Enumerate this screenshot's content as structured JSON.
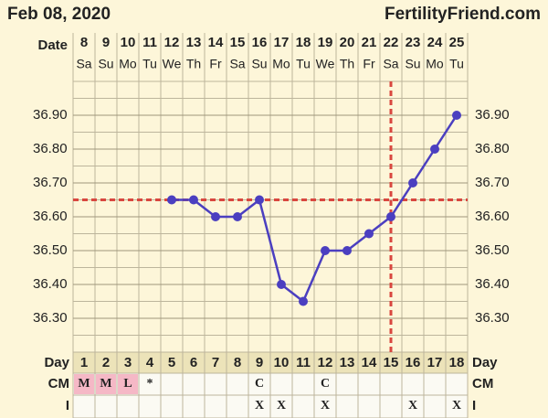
{
  "header": {
    "date": "Feb 08, 2020",
    "site": "FertilityFriend.com"
  },
  "chart_data": {
    "type": "line",
    "date_label": "Date",
    "dates": [
      8,
      9,
      10,
      11,
      12,
      13,
      14,
      15,
      16,
      17,
      18,
      19,
      20,
      21,
      22,
      23,
      24,
      25
    ],
    "weekdays": [
      "Sa",
      "Su",
      "Mo",
      "Tu",
      "We",
      "Th",
      "Fr",
      "Sa",
      "Su",
      "Mo",
      "Tu",
      "We",
      "Th",
      "Fr",
      "Sa",
      "Su",
      "Mo",
      "Tu"
    ],
    "day_label": "Day",
    "categories": [
      1,
      2,
      3,
      4,
      5,
      6,
      7,
      8,
      9,
      10,
      11,
      12,
      13,
      14,
      15,
      16,
      17,
      18
    ],
    "values": [
      null,
      null,
      null,
      null,
      36.65,
      36.65,
      36.6,
      36.6,
      36.65,
      36.4,
      36.35,
      36.5,
      36.5,
      36.55,
      36.6,
      36.7,
      36.8,
      36.9
    ],
    "color": "#4b3fc0",
    "ylim": [
      36.2,
      37.0
    ],
    "yticks": [
      {
        "value": 36.3,
        "label": "36.30"
      },
      {
        "value": 36.4,
        "label": "36.40"
      },
      {
        "value": 36.5,
        "label": "36.50"
      },
      {
        "value": 36.6,
        "label": "36.60"
      },
      {
        "value": 36.7,
        "label": "36.70"
      },
      {
        "value": 36.8,
        "label": "36.80"
      },
      {
        "value": 36.9,
        "label": "36.90"
      }
    ],
    "grid": true,
    "coverline": 36.65,
    "ovulation_day": 15,
    "marker_color": "#d9473f",
    "cm_label": "CM",
    "cm": [
      "M",
      "M",
      "L",
      "*",
      null,
      null,
      null,
      null,
      "C",
      null,
      null,
      "C",
      null,
      null,
      null,
      null,
      null,
      null
    ],
    "cm_highlight": [
      true,
      true,
      true,
      false,
      false,
      false,
      false,
      false,
      false,
      false,
      false,
      false,
      false,
      false,
      false,
      false,
      false,
      false
    ],
    "highlight_color": "#f5b8c6",
    "i_label": "I",
    "intercourse": [
      null,
      null,
      null,
      null,
      null,
      null,
      null,
      null,
      "X",
      "X",
      null,
      "X",
      null,
      null,
      null,
      "X",
      null,
      "X"
    ]
  }
}
